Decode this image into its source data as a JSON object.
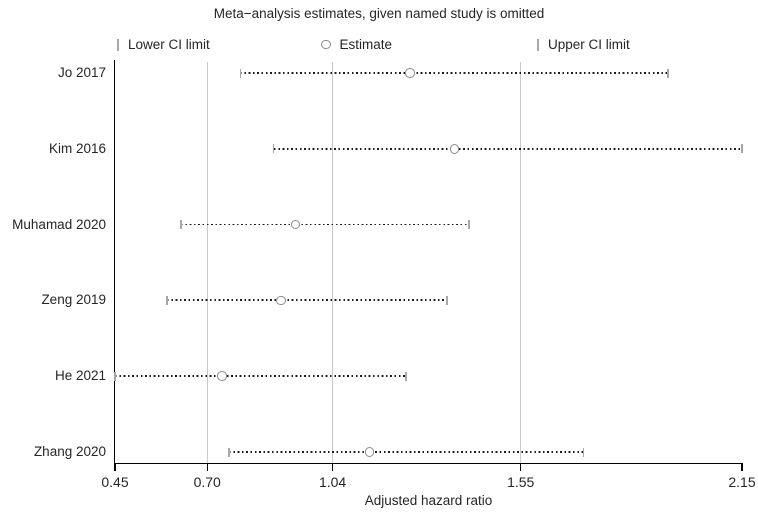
{
  "chart_data": {
    "type": "scatter",
    "subtype": "leave-one-out-sensitivity-forest-plot",
    "title": "Meta−analysis estimates, given named study is omitted",
    "xlabel": "Adjusted hazard ratio",
    "xlim": [
      0.45,
      2.15
    ],
    "x_scale": "linear",
    "x_ticks": [
      0.45,
      0.7,
      1.04,
      1.55,
      2.15
    ],
    "x_tick_labels": [
      "0.45",
      "0.70",
      "1.04",
      "1.55",
      "2.15"
    ],
    "reference_lines": [
      0.7,
      1.04,
      1.55
    ],
    "grid": "vertical-reference-lines-only",
    "legend_position": "top",
    "legend": [
      {
        "glyph": "tick",
        "label": "Lower CI limit"
      },
      {
        "glyph": "circle",
        "label": "Estimate"
      },
      {
        "glyph": "tick",
        "label": "Upper CI limit"
      }
    ],
    "studies": [
      {
        "label": "Jo 2017",
        "lower": 0.79,
        "estimate": 1.25,
        "upper": 1.95
      },
      {
        "label": "Kim 2016",
        "lower": 0.88,
        "estimate": 1.37,
        "upper": 2.15
      },
      {
        "label": "Muhamad 2020",
        "lower": 0.63,
        "estimate": 0.94,
        "upper": 1.41
      },
      {
        "label": "Zeng 2019",
        "lower": 0.59,
        "estimate": 0.9,
        "upper": 1.35
      },
      {
        "label": "He 2021",
        "lower": 0.45,
        "estimate": 0.74,
        "upper": 1.24
      },
      {
        "label": "Zhang 2020",
        "lower": 0.76,
        "estimate": 1.14,
        "upper": 1.72
      }
    ],
    "colors": {
      "dots": "#1c1c1c",
      "ci_limit_tick": "#a8a8a8",
      "estimate_stroke": "#8c8c8c",
      "reference_line": "#c9c9c9",
      "axis": "#000000",
      "text": "#262626",
      "background": "#ffffff"
    }
  }
}
